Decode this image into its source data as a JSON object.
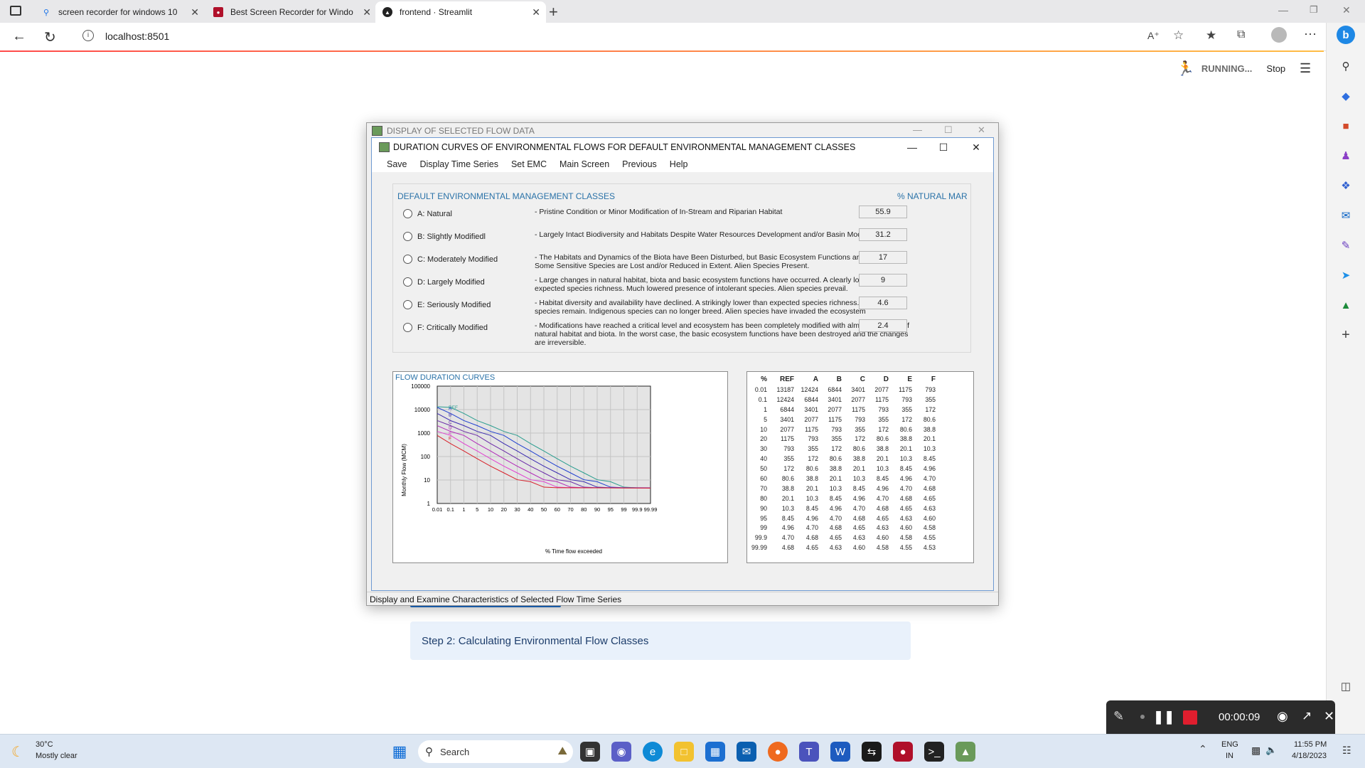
{
  "browser": {
    "tabs": [
      {
        "title": "screen recorder for windows 10",
        "icon": "search-icon"
      },
      {
        "title": "Best Screen Recorder for Windo",
        "icon": "recorder-icon"
      },
      {
        "title": "frontend · Streamlit",
        "icon": "streamlit-icon"
      }
    ],
    "url": "localhost:8501"
  },
  "streamlit": {
    "status": "RUNNING...",
    "stop_label": "Stop",
    "step2_label": "Step 2: Calculating Environmental Flow Classes"
  },
  "outer_window": {
    "title": "DISPLAY OF SELECTED FLOW DATA",
    "status": "Display and Examine Characteristics of Selected Flow Time Series"
  },
  "inner_window": {
    "title": "DURATION CURVES OF ENVIRONMENTAL FLOWS FOR DEFAULT ENVIRONMENTAL MANAGEMENT CLASSES",
    "menu": [
      "Save",
      "Display Time Series",
      "Set EMC",
      "Main Screen",
      "Previous",
      "Help"
    ]
  },
  "emc": {
    "heading": "DEFAULT ENVIRONMENTAL MANAGEMENT CLASSES",
    "mar_heading": "% NATURAL MAR",
    "classes": [
      {
        "label": "A:  Natural",
        "desc": "Pristine Condition or Minor Modification of In-Stream and Riparian Habitat",
        "value": "55.9"
      },
      {
        "label": "B:  Slightly Modifiedl",
        "desc": "Largely Intact Biodiversity and Habitats Despite Water Resources Development and/or Basin Modifications",
        "value": "31.2"
      },
      {
        "label": "C:  Moderately Modified",
        "desc": "The Habitats and Dynamics of the Biota have Been Disturbed, but Basic Ecosystem Functions are Still Intact. Some Sensitive Species are Lost and/or Reduced in Extent.  Alien Species Present.",
        "value": "17"
      },
      {
        "label": "D:  Largely Modified",
        "desc": "Large changes in natural habitat, biota and basic ecosystem functions have occurred.  A clearly lower than expected species richness.  Much lowered presence of intolerant species.  Alien species prevail.",
        "value": "9"
      },
      {
        "label": "E:  Seriously Modified",
        "desc": "Habitat diversity and availability have declined.  A strikingly lower than expected species richness.  Only tolerant species remain.  Indigenous species can no longer breed.  Alien species have invaded the ecosystem",
        "value": "4.6"
      },
      {
        "label": "F:  Critically Modified",
        "desc": "Modifications have reached a critical level and ecosystem has been  completely modified with almost total loss of natural habitat and biota.  In the worst case,  the basic ecosystem functions have been destroyed and the changes are irreversible.",
        "value": "2.4"
      }
    ]
  },
  "chart_data": {
    "type": "line",
    "title": "FLOW DURATION CURVES",
    "xlabel": "% Time flow exceeded",
    "ylabel": "Monthly Flow (MCM)",
    "yscale": "log",
    "ylim": [
      1,
      100000
    ],
    "y_ticks": [
      "100000",
      "10000",
      "1000",
      "100",
      "10",
      "1"
    ],
    "x": [
      "0.01",
      "0.1",
      "1",
      "5",
      "10",
      "20",
      "30",
      "40",
      "50",
      "60",
      "70",
      "80",
      "90",
      "95",
      "99",
      "99.9",
      "99.99"
    ],
    "series_label_text": [
      "REF",
      "A",
      "B",
      "C",
      "D",
      "E",
      "F"
    ],
    "series": [
      {
        "name": "REF",
        "color": "#2a9d8f",
        "values": [
          13187,
          12424,
          6844,
          3401,
          2077,
          1175,
          793,
          355,
          172,
          80.6,
          38.8,
          20.1,
          10.3,
          8.45,
          4.96,
          4.7,
          4.68
        ]
      },
      {
        "name": "A",
        "color": "#1f3fd0",
        "values": [
          12424,
          6844,
          3401,
          2077,
          1175,
          793,
          355,
          172,
          80.6,
          38.8,
          20.1,
          10.3,
          8.45,
          4.96,
          4.7,
          4.68,
          4.65
        ]
      },
      {
        "name": "B",
        "color": "#3a2ab0",
        "values": [
          6844,
          3401,
          2077,
          1175,
          793,
          355,
          172,
          80.6,
          38.8,
          20.1,
          10.3,
          8.45,
          4.96,
          4.7,
          4.68,
          4.65,
          4.63
        ]
      },
      {
        "name": "C",
        "color": "#6a2aa8",
        "values": [
          3401,
          2077,
          1175,
          793,
          355,
          172,
          80.6,
          38.8,
          20.1,
          10.3,
          8.45,
          4.96,
          4.7,
          4.68,
          4.65,
          4.63,
          4.6
        ]
      },
      {
        "name": "D",
        "color": "#b02ab8",
        "values": [
          2077,
          1175,
          793,
          355,
          172,
          80.6,
          38.8,
          20.1,
          10.3,
          8.45,
          4.96,
          4.7,
          4.68,
          4.65,
          4.63,
          4.6,
          4.58
        ]
      },
      {
        "name": "E",
        "color": "#e040d0",
        "values": [
          1175,
          793,
          355,
          172,
          80.6,
          38.8,
          20.1,
          10.3,
          8.45,
          4.96,
          4.7,
          4.68,
          4.65,
          4.63,
          4.6,
          4.58,
          4.55
        ]
      },
      {
        "name": "F",
        "color": "#d8202a",
        "values": [
          793,
          355,
          172,
          80.6,
          38.8,
          20.1,
          10.3,
          8.45,
          4.96,
          4.7,
          4.68,
          4.65,
          4.63,
          4.6,
          4.58,
          4.55,
          4.53
        ]
      }
    ]
  },
  "table": {
    "headers": [
      "%",
      "REF",
      "A",
      "B",
      "C",
      "D",
      "E",
      "F"
    ],
    "rows": [
      [
        "0.01",
        "13187",
        "12424",
        "6844",
        "3401",
        "2077",
        "1175",
        "793"
      ],
      [
        "0.1",
        "12424",
        "6844",
        "3401",
        "2077",
        "1175",
        "793",
        "355"
      ],
      [
        "1",
        "6844",
        "3401",
        "2077",
        "1175",
        "793",
        "355",
        "172"
      ],
      [
        "5",
        "3401",
        "2077",
        "1175",
        "793",
        "355",
        "172",
        "80.6"
      ],
      [
        "10",
        "2077",
        "1175",
        "793",
        "355",
        "172",
        "80.6",
        "38.8"
      ],
      [
        "20",
        "1175",
        "793",
        "355",
        "172",
        "80.6",
        "38.8",
        "20.1"
      ],
      [
        "30",
        "793",
        "355",
        "172",
        "80.6",
        "38.8",
        "20.1",
        "10.3"
      ],
      [
        "40",
        "355",
        "172",
        "80.6",
        "38.8",
        "20.1",
        "10.3",
        "8.45"
      ],
      [
        "50",
        "172",
        "80.6",
        "38.8",
        "20.1",
        "10.3",
        "8.45",
        "4.96"
      ],
      [
        "60",
        "80.6",
        "38.8",
        "20.1",
        "10.3",
        "8.45",
        "4.96",
        "4.70"
      ],
      [
        "70",
        "38.8",
        "20.1",
        "10.3",
        "8.45",
        "4.96",
        "4.70",
        "4.68"
      ],
      [
        "80",
        "20.1",
        "10.3",
        "8.45",
        "4.96",
        "4.70",
        "4.68",
        "4.65"
      ],
      [
        "90",
        "10.3",
        "8.45",
        "4.96",
        "4.70",
        "4.68",
        "4.65",
        "4.63"
      ],
      [
        "95",
        "8.45",
        "4.96",
        "4.70",
        "4.68",
        "4.65",
        "4.63",
        "4.60"
      ],
      [
        "99",
        "4.96",
        "4.70",
        "4.68",
        "4.65",
        "4.63",
        "4.60",
        "4.58"
      ],
      [
        "99.9",
        "4.70",
        "4.68",
        "4.65",
        "4.63",
        "4.60",
        "4.58",
        "4.55"
      ],
      [
        "99.99",
        "4.68",
        "4.65",
        "4.63",
        "4.60",
        "4.58",
        "4.55",
        "4.53"
      ]
    ]
  },
  "recorder": {
    "timer": "00:00:09"
  },
  "taskbar": {
    "weather_temp": "30°C",
    "weather_desc": "Mostly clear",
    "search_placeholder": "Search",
    "lang_top": "ENG",
    "lang_bottom": "IN",
    "time": "11:55 PM",
    "date": "4/18/2023"
  }
}
